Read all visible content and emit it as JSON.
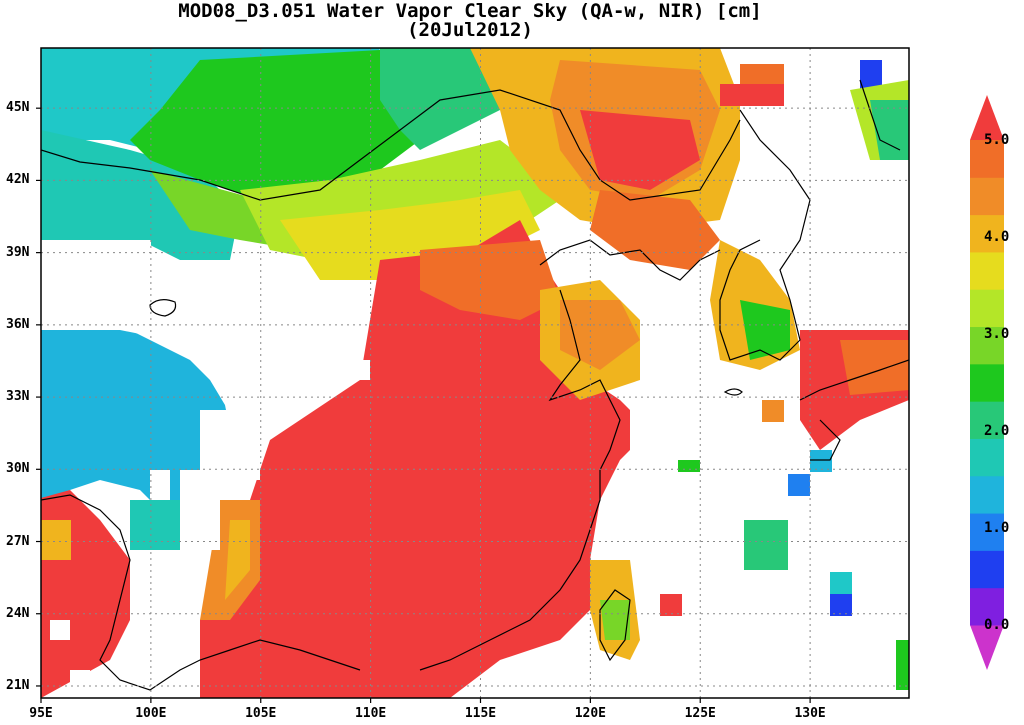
{
  "title": {
    "line1": "MOD08_D3.051 Water Vapor Clear Sky (QA-w, NIR) [cm]",
    "line2": "(20Jul2012)"
  },
  "map": {
    "lon_range": [
      95,
      134.5
    ],
    "lat_range": [
      20.5,
      47.5
    ],
    "lat_ticks": [
      {
        "value": 45,
        "label": "45N"
      },
      {
        "value": 42,
        "label": "42N"
      },
      {
        "value": 39,
        "label": "39N"
      },
      {
        "value": 36,
        "label": "36N"
      },
      {
        "value": 33,
        "label": "33N"
      },
      {
        "value": 30,
        "label": "30N"
      },
      {
        "value": 27,
        "label": "27N"
      },
      {
        "value": 24,
        "label": "24N"
      },
      {
        "value": 21,
        "label": "21N"
      }
    ],
    "lon_ticks": [
      {
        "value": 95,
        "label": "95E"
      },
      {
        "value": 100,
        "label": "100E"
      },
      {
        "value": 105,
        "label": "105E"
      },
      {
        "value": 110,
        "label": "110E"
      },
      {
        "value": 115,
        "label": "115E"
      },
      {
        "value": 120,
        "label": "120E"
      },
      {
        "value": 125,
        "label": "125E"
      },
      {
        "value": 130,
        "label": "130E"
      }
    ],
    "gridlines": "dotted"
  },
  "colorbar": {
    "min": 0.0,
    "max": 5.0,
    "labels": [
      "5.0",
      "4.0",
      "3.0",
      "2.0",
      "1.0",
      "0.0"
    ],
    "colors": [
      "#cc33cc",
      "#7f1fe0",
      "#1f3ff0",
      "#1f80f0",
      "#1fb4dc",
      "#1fc8b4",
      "#28c878",
      "#1ec81e",
      "#78d628",
      "#b4e628",
      "#e6dc1e",
      "#f0b41e",
      "#f08c28",
      "#f06e28",
      "#f03c3c"
    ]
  }
}
